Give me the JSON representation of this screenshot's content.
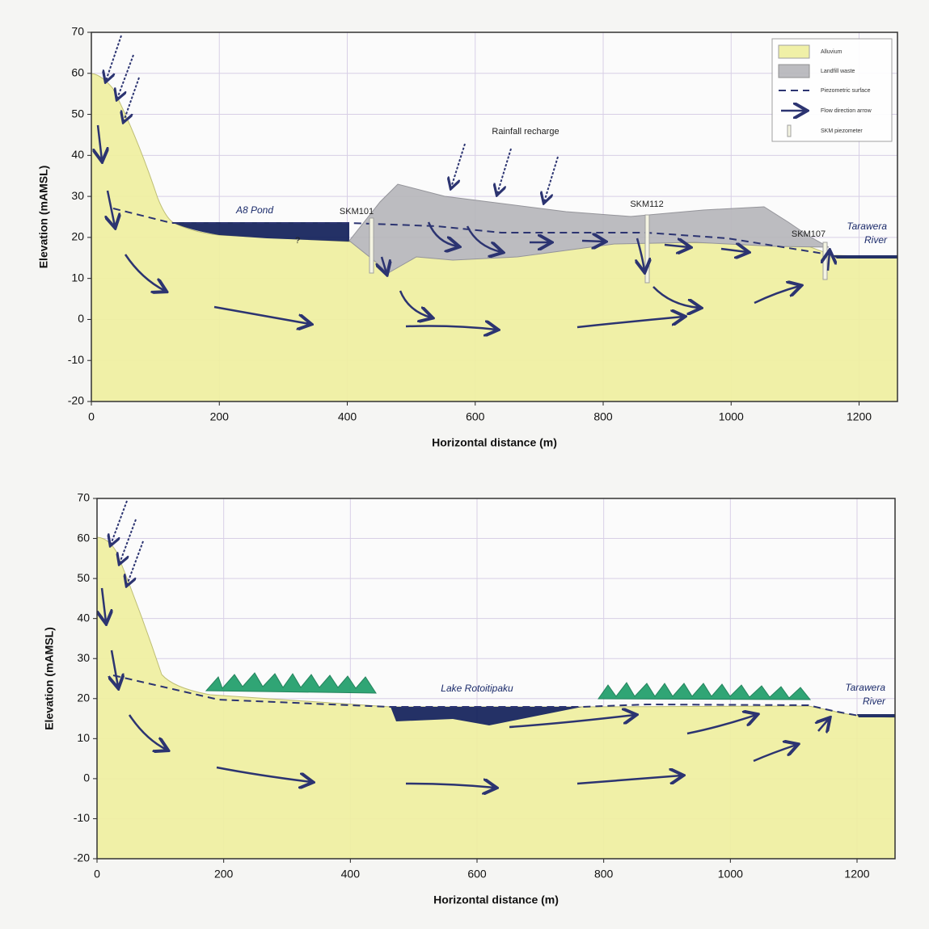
{
  "chart_data": [
    {
      "type": "cross-section",
      "xlabel": "Horizontal distance (m)",
      "ylabel": "Elevation (mAMSL)",
      "xlim": [
        0,
        1260
      ],
      "ylim": [
        -20,
        70
      ],
      "xticks": [
        0,
        200,
        400,
        600,
        800,
        1000,
        1200
      ],
      "yticks": [
        -20,
        -10,
        0,
        10,
        20,
        30,
        40,
        50,
        60,
        70
      ],
      "grid": true,
      "legend": [
        "Alluvium",
        "Landfill waste",
        "Piezometric surface",
        "Flow direction arrow",
        "SKM piezometer"
      ],
      "annotations": [
        "A8 Pond",
        "SKM101",
        "SKM112",
        "SKM107",
        "Tarawera",
        "River",
        "Rainfall recharge",
        "?"
      ]
    },
    {
      "type": "cross-section",
      "xlabel": "Horizontal distance (m)",
      "ylabel": "Elevation (mAMSL)",
      "xlim": [
        0,
        1260
      ],
      "ylim": [
        -20,
        70
      ],
      "xticks": [
        0,
        200,
        400,
        600,
        800,
        1000,
        1200
      ],
      "yticks": [
        -20,
        -10,
        0,
        10,
        20,
        30,
        40,
        50,
        60,
        70
      ],
      "grid": true,
      "annotations": [
        "Lake Rotoitipaku",
        "Tarawera",
        "River"
      ]
    }
  ]
}
